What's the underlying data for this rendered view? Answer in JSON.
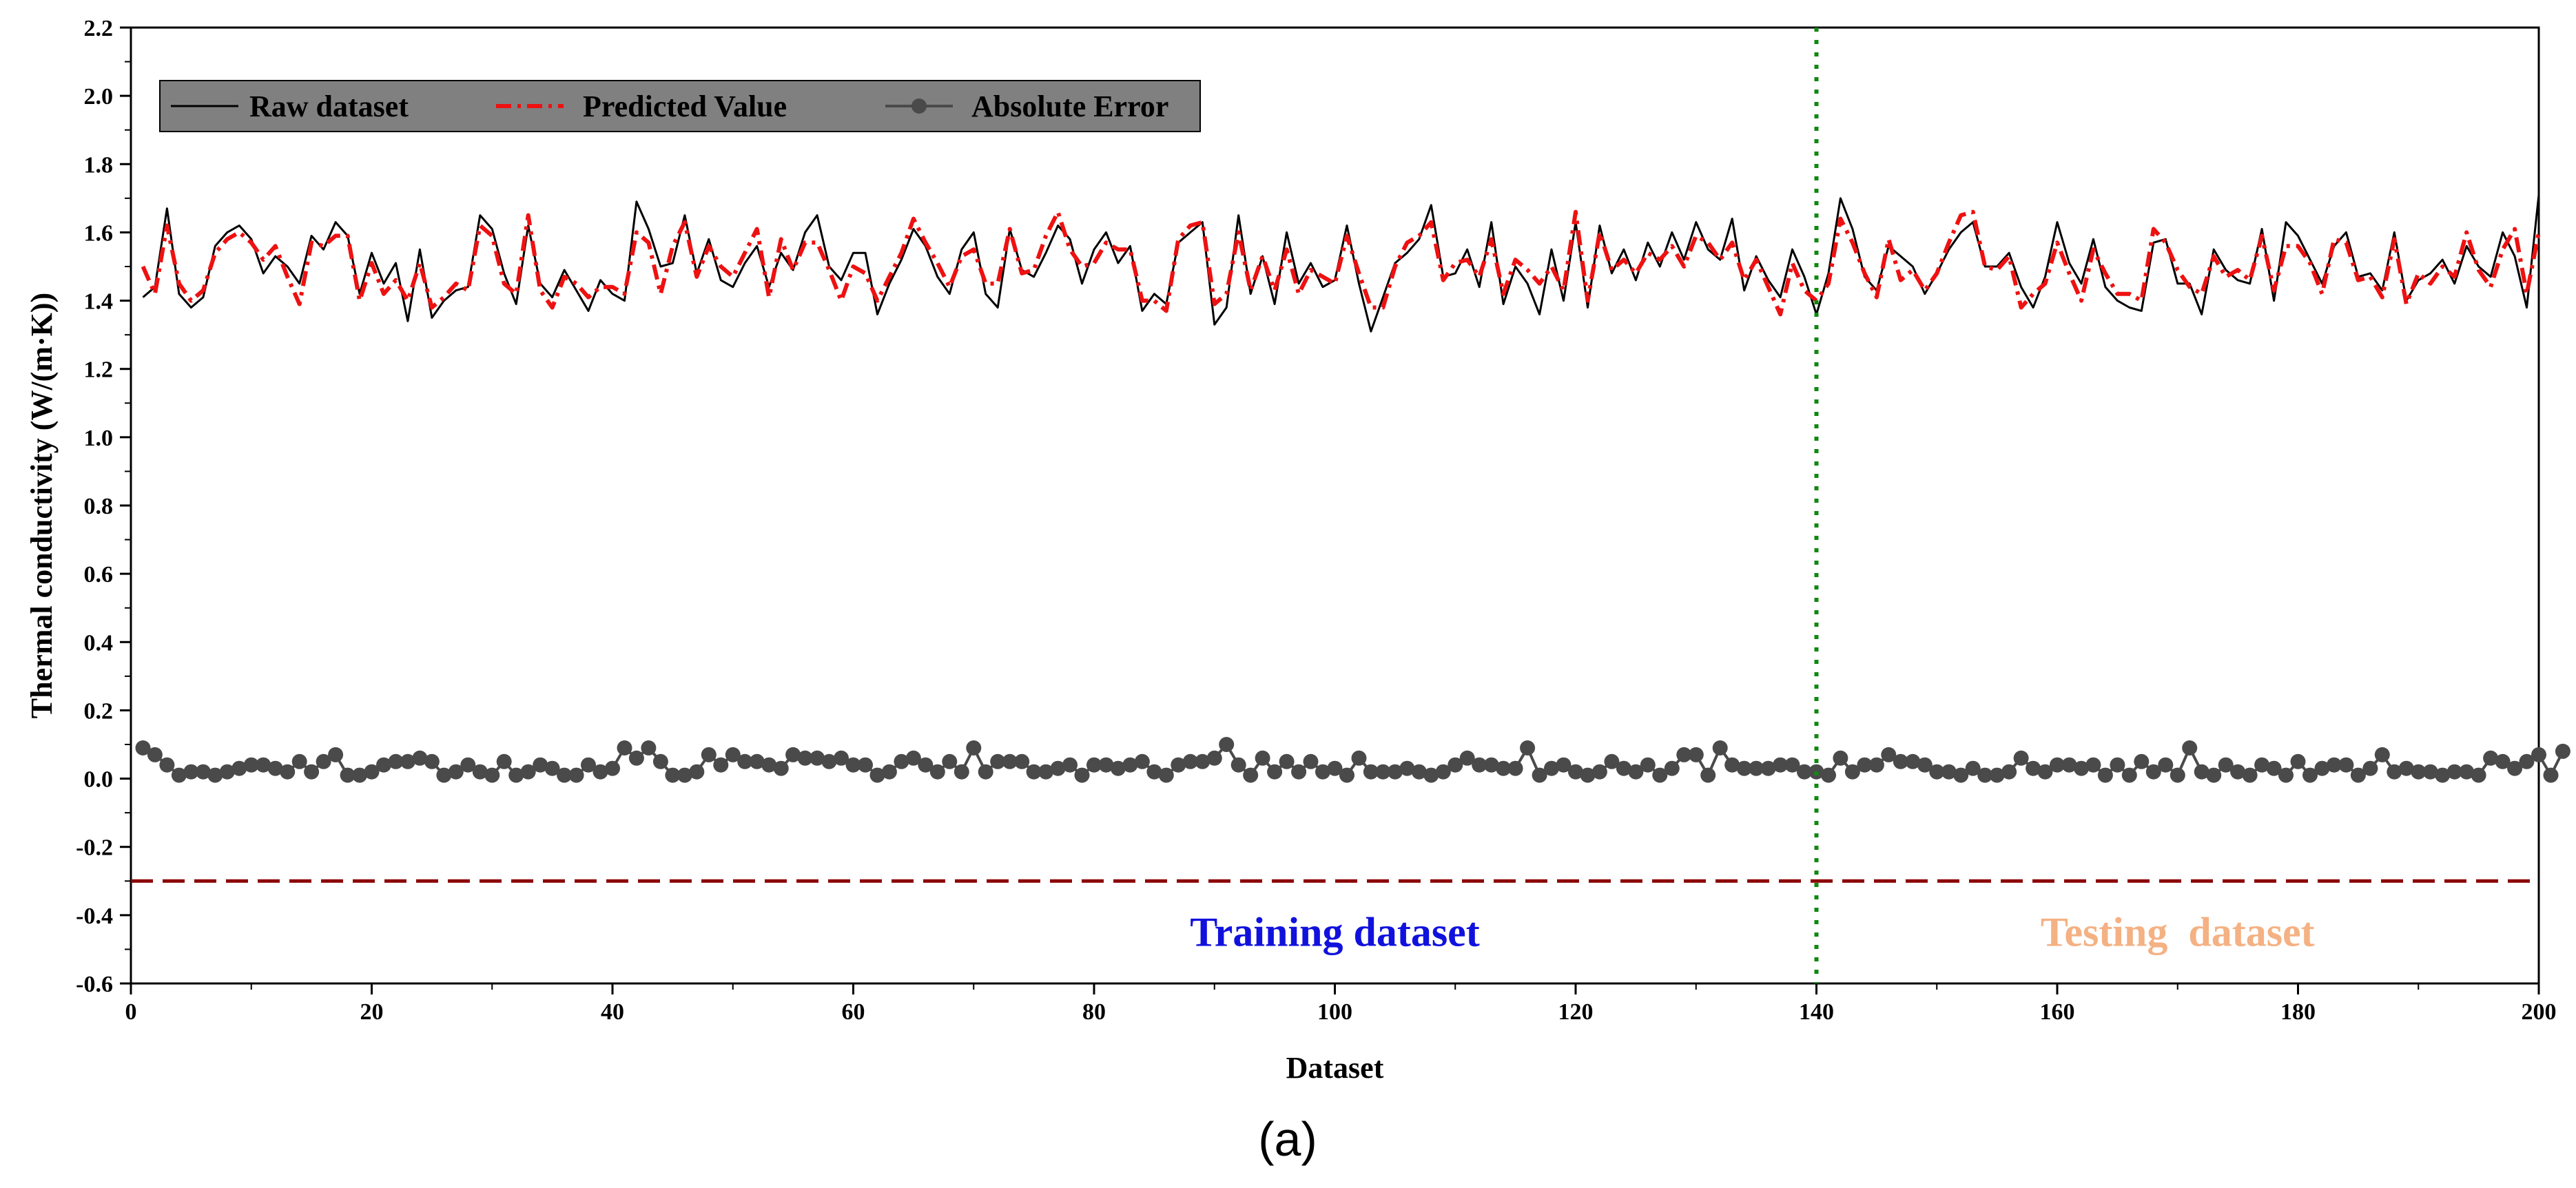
{
  "chart_data": {
    "type": "line",
    "xlabel": "Dataset",
    "ylabel": "Thermal conductivity (W/(m·K))",
    "xlim": [
      0,
      200
    ],
    "ylim": [
      -0.6,
      2.2
    ],
    "x_ticks": [
      0,
      20,
      40,
      60,
      80,
      100,
      120,
      140,
      160,
      180,
      200
    ],
    "x_tick_labels": [
      "0",
      "20",
      "40",
      "60",
      "80",
      "100",
      "120",
      "140",
      "160",
      "180",
      "200"
    ],
    "y_ticks": [
      -0.6,
      -0.4,
      -0.2,
      0.0,
      0.2,
      0.4,
      0.6,
      0.8,
      1.0,
      1.2,
      1.4,
      1.6,
      1.8,
      2.0,
      2.2
    ],
    "y_tick_labels": [
      "-0.6",
      "-0.4",
      "-0.2",
      "0.0",
      "0.2",
      "0.4",
      "0.6",
      "0.8",
      "1.0",
      "1.2",
      "1.4",
      "1.6",
      "1.8",
      "2.0",
      "2.2"
    ],
    "grid": false,
    "legend_position": "top-left",
    "panel_label": "(a)",
    "split_x": 140,
    "baseline_y": -0.3,
    "region_labels": {
      "training": "Training dataset",
      "testing": "Testing  dataset"
    },
    "colors": {
      "raw": "#000000",
      "predicted": "#ee1111",
      "error": "#4a4a4a",
      "split_line": "#118811",
      "baseline": "#8b0000",
      "training_label": "#1111dd",
      "testing_label": "#f4b183",
      "legend_bg": "#808080"
    },
    "series": [
      {
        "name": "Raw dataset",
        "style": "solid",
        "x_start": 1,
        "x_step": 1,
        "values": [
          1.41,
          1.44,
          1.67,
          1.42,
          1.38,
          1.41,
          1.56,
          1.6,
          1.62,
          1.58,
          1.48,
          1.53,
          1.5,
          1.45,
          1.59,
          1.55,
          1.63,
          1.59,
          1.42,
          1.54,
          1.45,
          1.51,
          1.34,
          1.55,
          1.35,
          1.4,
          1.43,
          1.44,
          1.65,
          1.61,
          1.48,
          1.39,
          1.62,
          1.45,
          1.41,
          1.49,
          1.43,
          1.37,
          1.46,
          1.42,
          1.4,
          1.69,
          1.61,
          1.5,
          1.51,
          1.65,
          1.48,
          1.58,
          1.46,
          1.44,
          1.51,
          1.56,
          1.44,
          1.54,
          1.49,
          1.6,
          1.65,
          1.5,
          1.46,
          1.54,
          1.54,
          1.36,
          1.45,
          1.52,
          1.61,
          1.56,
          1.47,
          1.42,
          1.55,
          1.6,
          1.42,
          1.38,
          1.61,
          1.49,
          1.47,
          1.54,
          1.62,
          1.58,
          1.45,
          1.55,
          1.6,
          1.51,
          1.56,
          1.37,
          1.42,
          1.39,
          1.57,
          1.6,
          1.63,
          1.33,
          1.38,
          1.65,
          1.42,
          1.53,
          1.39,
          1.6,
          1.45,
          1.51,
          1.44,
          1.46,
          1.62,
          1.45,
          1.31,
          1.41,
          1.51,
          1.54,
          1.58,
          1.68,
          1.47,
          1.48,
          1.55,
          1.44,
          1.63,
          1.39,
          1.5,
          1.45,
          1.36,
          1.55,
          1.4,
          1.63,
          1.38,
          1.62,
          1.48,
          1.55,
          1.46,
          1.57,
          1.5,
          1.6,
          1.52,
          1.63,
          1.55,
          1.52,
          1.64,
          1.43,
          1.53,
          1.46,
          1.41,
          1.55,
          1.47,
          1.36,
          1.48,
          1.7,
          1.61,
          1.47,
          1.43,
          1.56,
          1.53,
          1.5,
          1.42,
          1.48,
          1.55,
          1.6,
          1.63,
          1.5,
          1.5,
          1.54,
          1.44,
          1.38,
          1.47,
          1.63,
          1.51,
          1.45,
          1.58,
          1.44,
          1.4,
          1.38,
          1.37,
          1.57,
          1.58,
          1.45,
          1.45,
          1.36,
          1.55,
          1.49,
          1.46,
          1.45,
          1.61,
          1.4,
          1.63,
          1.59,
          1.52,
          1.45,
          1.56,
          1.6,
          1.47,
          1.48,
          1.43,
          1.6,
          1.4,
          1.46,
          1.48,
          1.52,
          1.45,
          1.56,
          1.5,
          1.47,
          1.6,
          1.53,
          1.38,
          1.71
        ]
      },
      {
        "name": "Predicted Value",
        "style": "dash-dot",
        "x_start": 1,
        "x_step": 1,
        "values": [
          1.5,
          1.42,
          1.62,
          1.45,
          1.4,
          1.43,
          1.54,
          1.58,
          1.6,
          1.57,
          1.52,
          1.56,
          1.47,
          1.39,
          1.57,
          1.56,
          1.59,
          1.59,
          1.4,
          1.51,
          1.42,
          1.46,
          1.4,
          1.51,
          1.38,
          1.41,
          1.45,
          1.43,
          1.62,
          1.59,
          1.45,
          1.42,
          1.65,
          1.43,
          1.38,
          1.47,
          1.45,
          1.41,
          1.44,
          1.44,
          1.42,
          1.6,
          1.57,
          1.42,
          1.56,
          1.63,
          1.47,
          1.56,
          1.5,
          1.47,
          1.54,
          1.61,
          1.41,
          1.58,
          1.49,
          1.57,
          1.57,
          1.49,
          1.4,
          1.5,
          1.48,
          1.4,
          1.47,
          1.54,
          1.64,
          1.57,
          1.51,
          1.44,
          1.53,
          1.55,
          1.45,
          1.45,
          1.61,
          1.48,
          1.49,
          1.59,
          1.66,
          1.55,
          1.5,
          1.51,
          1.57,
          1.55,
          1.55,
          1.4,
          1.4,
          1.37,
          1.58,
          1.62,
          1.63,
          1.39,
          1.42,
          1.6,
          1.43,
          1.53,
          1.43,
          1.55,
          1.42,
          1.49,
          1.47,
          1.45,
          1.59,
          1.48,
          1.38,
          1.38,
          1.5,
          1.57,
          1.59,
          1.63,
          1.46,
          1.51,
          1.52,
          1.47,
          1.58,
          1.42,
          1.52,
          1.49,
          1.45,
          1.5,
          1.43,
          1.66,
          1.4,
          1.6,
          1.49,
          1.52,
          1.48,
          1.54,
          1.52,
          1.56,
          1.5,
          1.59,
          1.57,
          1.52,
          1.57,
          1.46,
          1.52,
          1.44,
          1.36,
          1.51,
          1.43,
          1.4,
          1.45,
          1.64,
          1.57,
          1.48,
          1.41,
          1.58,
          1.46,
          1.49,
          1.43,
          1.48,
          1.57,
          1.65,
          1.66,
          1.5,
          1.49,
          1.53,
          1.38,
          1.42,
          1.45,
          1.57,
          1.48,
          1.4,
          1.55,
          1.48,
          1.42,
          1.42,
          1.4,
          1.61,
          1.57,
          1.49,
          1.44,
          1.42,
          1.53,
          1.47,
          1.49,
          1.46,
          1.59,
          1.43,
          1.56,
          1.56,
          1.51,
          1.42,
          1.58,
          1.57,
          1.46,
          1.47,
          1.41,
          1.58,
          1.39,
          1.48,
          1.45,
          1.5,
          1.47,
          1.6,
          1.49,
          1.44,
          1.55,
          1.61,
          1.42,
          1.6
        ]
      },
      {
        "name": "Absolute Error",
        "style": "line-markers",
        "x_start": 1,
        "x_step": 1,
        "values": [
          0.09,
          0.07,
          0.04,
          0.01,
          0.02,
          0.02,
          0.01,
          0.02,
          0.03,
          0.04,
          0.04,
          0.03,
          0.02,
          0.05,
          0.02,
          0.05,
          0.07,
          0.01,
          0.01,
          0.02,
          0.04,
          0.05,
          0.05,
          0.06,
          0.05,
          0.01,
          0.02,
          0.04,
          0.02,
          0.01,
          0.05,
          0.01,
          0.02,
          0.04,
          0.03,
          0.01,
          0.01,
          0.04,
          0.02,
          0.03,
          0.09,
          0.06,
          0.09,
          0.05,
          0.01,
          0.01,
          0.02,
          0.07,
          0.04,
          0.07,
          0.05,
          0.05,
          0.04,
          0.03,
          0.07,
          0.06,
          0.06,
          0.05,
          0.06,
          0.04,
          0.04,
          0.01,
          0.02,
          0.05,
          0.06,
          0.04,
          0.02,
          0.05,
          0.02,
          0.09,
          0.02,
          0.05,
          0.05,
          0.05,
          0.02,
          0.02,
          0.03,
          0.04,
          0.01,
          0.04,
          0.04,
          0.03,
          0.04,
          0.05,
          0.02,
          0.01,
          0.04,
          0.05,
          0.05,
          0.06,
          0.1,
          0.04,
          0.01,
          0.06,
          0.02,
          0.05,
          0.02,
          0.05,
          0.02,
          0.03,
          0.01,
          0.06,
          0.02,
          0.02,
          0.02,
          0.03,
          0.02,
          0.01,
          0.02,
          0.04,
          0.06,
          0.04,
          0.04,
          0.03,
          0.03,
          0.09,
          0.01,
          0.03,
          0.04,
          0.02,
          0.01,
          0.02,
          0.05,
          0.03,
          0.02,
          0.04,
          0.01,
          0.03,
          0.07,
          0.07,
          0.01,
          0.09,
          0.04,
          0.03,
          0.03,
          0.03,
          0.04,
          0.04,
          0.02,
          0.02,
          0.01,
          0.06,
          0.02,
          0.04,
          0.04,
          0.07,
          0.05,
          0.05,
          0.04,
          0.02,
          0.02,
          0.01,
          0.03,
          0.01,
          0.01,
          0.02,
          0.06,
          0.03,
          0.02,
          0.04,
          0.04,
          0.03,
          0.04,
          0.01,
          0.04,
          0.01,
          0.05,
          0.02,
          0.04,
          0.01,
          0.09,
          0.02,
          0.01,
          0.04,
          0.02,
          0.01,
          0.04,
          0.03,
          0.01,
          0.05,
          0.01,
          0.03,
          0.04,
          0.04,
          0.01,
          0.03,
          0.07,
          0.02,
          0.03,
          0.02,
          0.02,
          0.01,
          0.02,
          0.02,
          0.01,
          0.06,
          0.05,
          0.03,
          0.05,
          0.07,
          0.01,
          0.08
        ]
      }
    ]
  }
}
